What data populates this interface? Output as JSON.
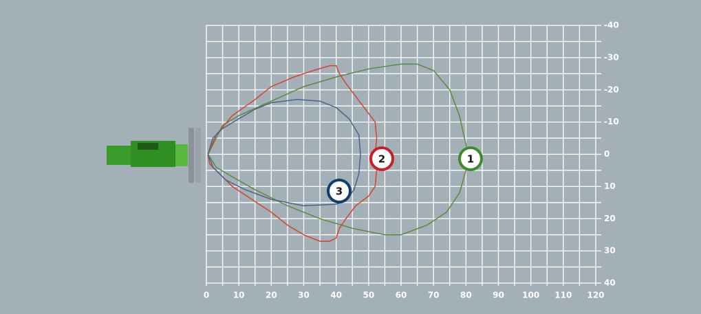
{
  "chart_data": {
    "type": "line",
    "xlim": [
      0,
      120
    ],
    "xticks": [
      0,
      10,
      20,
      30,
      40,
      50,
      60,
      70,
      80,
      90,
      100,
      110,
      120
    ],
    "ylim": [
      40,
      -40
    ],
    "yticks": [
      -40,
      -30,
      -20,
      -10,
      0,
      10,
      20,
      30,
      40
    ],
    "x_grid": [
      0,
      5,
      10,
      15,
      20,
      25,
      30,
      35,
      40,
      45,
      50,
      55,
      60,
      65,
      70,
      75,
      80,
      85,
      90,
      95,
      100,
      105,
      110,
      115,
      120
    ],
    "y_grid": [
      -40,
      -35,
      -30,
      -25,
      -20,
      -15,
      -10,
      -5,
      0,
      5,
      10,
      15,
      20,
      25,
      30,
      35,
      40
    ],
    "grid": true,
    "series": [
      {
        "name": "1",
        "color": "#5a8a3c",
        "x": [
          0.5,
          5,
          10,
          20,
          30,
          40,
          50,
          60,
          65,
          70,
          75,
          78,
          80,
          80.5,
          80,
          78,
          74,
          68,
          60,
          55,
          45,
          35,
          25,
          15,
          8,
          3,
          0.5
        ],
        "values": [
          0,
          -9,
          -12,
          -16.5,
          -21,
          -24,
          -26.5,
          -28,
          -28,
          -26,
          -20,
          -12,
          -3,
          0,
          5,
          12,
          18,
          22,
          25,
          25,
          23,
          20,
          16,
          11,
          7,
          4,
          0
        ]
      },
      {
        "name": "2",
        "color": "#d9412f",
        "x": [
          0.5,
          3,
          8,
          15,
          20,
          27,
          33,
          38,
          40,
          41,
          43,
          46,
          49,
          52,
          52.5,
          52,
          52.5,
          52,
          50,
          46,
          43,
          41,
          40,
          38,
          35,
          30,
          25,
          20,
          14,
          8,
          4,
          1,
          0.5
        ],
        "values": [
          0,
          -6,
          -12,
          -17,
          -21,
          -24,
          -26,
          -27.5,
          -27.5,
          -25,
          -22,
          -18,
          -14,
          -10,
          -5,
          0,
          5,
          10,
          13,
          16,
          20,
          23,
          26,
          27,
          27,
          25,
          22,
          18,
          14,
          10,
          6,
          3,
          0
        ]
      },
      {
        "name": "3",
        "color": "#4a6388",
        "x": [
          0.5,
          2,
          5,
          10,
          15,
          20,
          28,
          35,
          40,
          44,
          47,
          47.5,
          47,
          45.5,
          43,
          40,
          30,
          20,
          12,
          6,
          2,
          0.5
        ],
        "values": [
          0,
          -5,
          -8,
          -11,
          -14,
          -16,
          -17,
          -16.5,
          -14.5,
          -11,
          -6,
          0,
          6,
          11,
          14.5,
          15.5,
          16,
          14,
          11,
          8,
          4,
          0
        ]
      }
    ]
  }
}
